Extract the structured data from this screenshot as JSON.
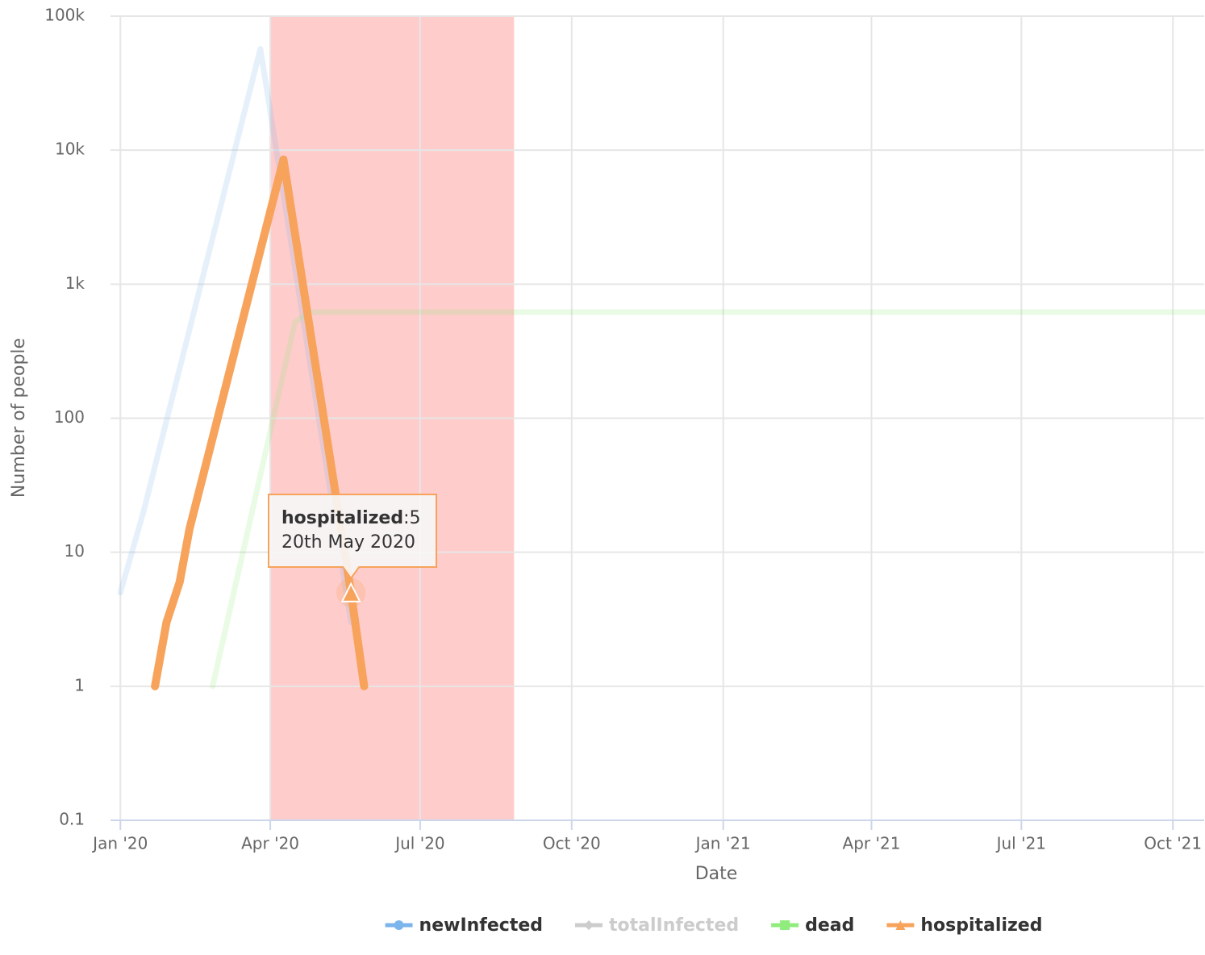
{
  "chart_data": {
    "type": "line",
    "log": true,
    "grid": true,
    "x_label": "Date",
    "y_label": "Number of people",
    "xlim": [
      "2019-12-26",
      "2021-10-20"
    ],
    "xticks": [
      {
        "value": "2020-01-01",
        "label": "Jan '20"
      },
      {
        "value": "2020-04-01",
        "label": "Apr '20"
      },
      {
        "value": "2020-07-01",
        "label": "Jul '20"
      },
      {
        "value": "2020-10-01",
        "label": "Oct '20"
      },
      {
        "value": "2021-01-01",
        "label": "Jan '21"
      },
      {
        "value": "2021-04-01",
        "label": "Apr '21"
      },
      {
        "value": "2021-07-01",
        "label": "Jul '21"
      },
      {
        "value": "2021-10-01",
        "label": "Oct '21"
      }
    ],
    "ylim": [
      0.1,
      100000
    ],
    "yticks": [
      0.1,
      1,
      10,
      100,
      {
        "value": 1000,
        "label": "1k"
      },
      {
        "value": 10000,
        "label": "10k"
      },
      {
        "value": 100000,
        "label": "100k"
      }
    ],
    "bands": [
      {
        "from": "2020-04-01",
        "to": "2020-08-27",
        "color": "#ffcccc"
      }
    ],
    "legend": "bottom",
    "series": [
      {
        "name": "newInfected",
        "color": "#7cb5ec",
        "marker": "circle",
        "x": [
          "2020-01-01",
          "2020-01-15",
          "2020-03-26",
          "2020-05-20"
        ],
        "values": [
          5,
          20,
          57000,
          3
        ]
      },
      {
        "name": "totalInfected",
        "color": "#434348",
        "marker": "diamond",
        "visible": false
      },
      {
        "name": "dead",
        "color": "#90ed7d",
        "marker": "square",
        "x": [
          "2020-02-26",
          "2020-04-16",
          "2020-04-25",
          "2021-10-20"
        ],
        "values": [
          1,
          520,
          620,
          620
        ]
      },
      {
        "name": "hospitalized",
        "color": "#f7a35c",
        "marker": "triangle",
        "x": [
          "2020-01-22",
          "2020-01-29",
          "2020-02-06",
          "2020-02-12",
          "2020-04-09",
          "2020-05-20",
          "2020-05-28"
        ],
        "values": [
          1,
          3,
          6,
          15,
          8500,
          5,
          1
        ]
      }
    ],
    "tooltip": {
      "series": 3,
      "point": 5,
      "separator": ":",
      "date_label": "20th May 2020"
    }
  }
}
